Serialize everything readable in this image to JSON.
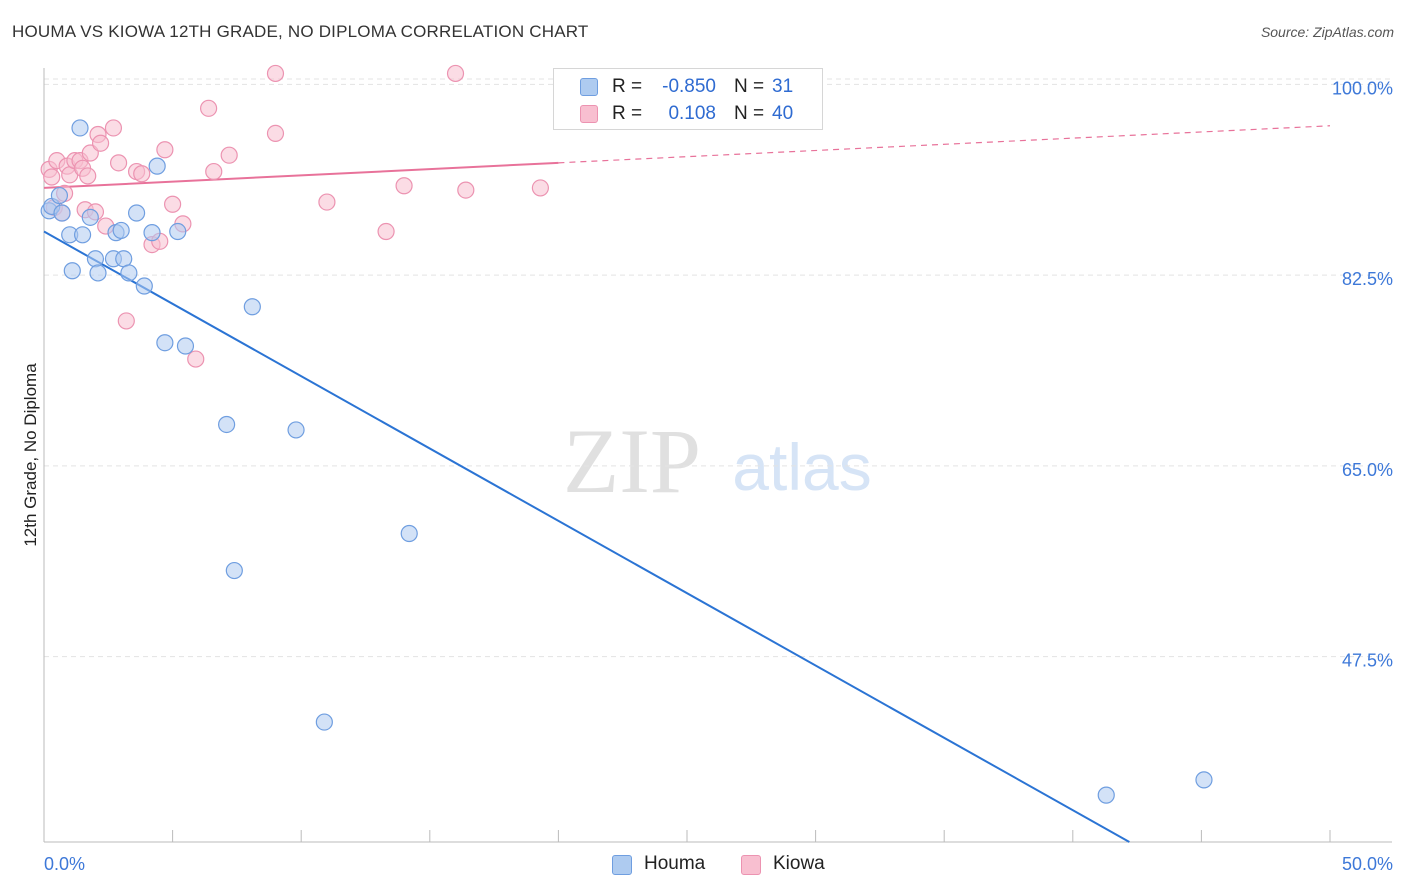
{
  "title": "HOUMA VS KIOWA 12TH GRADE, NO DIPLOMA CORRELATION CHART",
  "source": "Source: ZipAtlas.com",
  "watermark": {
    "zip": "ZIP",
    "atlas": "atlas"
  },
  "legend": {
    "r_label": "R =",
    "n_label": "N =",
    "rows": [
      {
        "series": "Houma",
        "r": "-0.850",
        "n": "31"
      },
      {
        "series": "Kiowa",
        "r": "0.108",
        "n": "40"
      }
    ]
  },
  "colors": {
    "houma_fill": "#aecbf0",
    "houma_stroke": "#6f9ee0",
    "houma_line": "#2b74d4",
    "kiowa_fill": "#f8bfd0",
    "kiowa_stroke": "#ec93b1",
    "kiowa_line": "#e8729a",
    "tick_label": "#3d78d8",
    "grid": "#e3e3e3"
  },
  "chart_data": {
    "type": "scatter",
    "title": "HOUMA VS KIOWA 12TH GRADE, NO DIPLOMA CORRELATION CHART",
    "xlabel": "",
    "ylabel": "12th Grade, No Diploma",
    "xlim": [
      0,
      50
    ],
    "ylim": [
      30.5,
      101.5
    ],
    "x_tick_labels": [
      "0.0%",
      "50.0%"
    ],
    "y_ticks": [
      {
        "value": 100.0,
        "label": "100.0%"
      },
      {
        "value": 82.5,
        "label": "82.5%"
      },
      {
        "value": 65.0,
        "label": "65.0%"
      },
      {
        "value": 47.5,
        "label": "47.5%"
      }
    ],
    "series": [
      {
        "name": "Houma",
        "points": [
          [
            0.2,
            88.4
          ],
          [
            0.3,
            88.8
          ],
          [
            0.6,
            89.8
          ],
          [
            0.7,
            88.2
          ],
          [
            1.0,
            86.2
          ],
          [
            1.1,
            82.9
          ],
          [
            1.4,
            96.0
          ],
          [
            1.5,
            86.2
          ],
          [
            1.8,
            87.8
          ],
          [
            2.0,
            84.0
          ],
          [
            2.1,
            82.7
          ],
          [
            2.7,
            84.0
          ],
          [
            2.8,
            86.4
          ],
          [
            3.0,
            86.6
          ],
          [
            3.1,
            84.0
          ],
          [
            3.3,
            82.7
          ],
          [
            3.6,
            88.2
          ],
          [
            3.9,
            81.5
          ],
          [
            4.2,
            86.4
          ],
          [
            4.4,
            92.5
          ],
          [
            4.7,
            76.3
          ],
          [
            5.2,
            86.5
          ],
          [
            5.5,
            76.0
          ],
          [
            7.1,
            68.8
          ],
          [
            7.4,
            55.4
          ],
          [
            8.1,
            79.6
          ],
          [
            9.8,
            68.3
          ],
          [
            10.9,
            41.5
          ],
          [
            14.2,
            58.8
          ],
          [
            41.3,
            34.8
          ],
          [
            45.1,
            36.2
          ]
        ],
        "trend": {
          "x": [
            0,
            42.2
          ],
          "y": [
            86.5,
            30.5
          ],
          "style": "solid"
        }
      },
      {
        "name": "Kiowa",
        "points": [
          [
            0.2,
            92.2
          ],
          [
            0.3,
            91.5
          ],
          [
            0.4,
            88.7
          ],
          [
            0.5,
            93.0
          ],
          [
            0.7,
            88.2
          ],
          [
            0.8,
            90.0
          ],
          [
            0.9,
            92.5
          ],
          [
            1.0,
            91.7
          ],
          [
            1.2,
            93.0
          ],
          [
            1.4,
            93.0
          ],
          [
            1.5,
            92.3
          ],
          [
            1.6,
            88.5
          ],
          [
            1.7,
            91.6
          ],
          [
            1.8,
            93.7
          ],
          [
            2.0,
            88.3
          ],
          [
            2.1,
            95.4
          ],
          [
            2.2,
            94.6
          ],
          [
            2.4,
            87.0
          ],
          [
            2.7,
            96.0
          ],
          [
            2.9,
            92.8
          ],
          [
            3.2,
            78.3
          ],
          [
            3.6,
            92.0
          ],
          [
            3.8,
            91.8
          ],
          [
            4.2,
            85.3
          ],
          [
            4.5,
            85.6
          ],
          [
            4.7,
            94.0
          ],
          [
            5.0,
            89.0
          ],
          [
            5.4,
            87.2
          ],
          [
            5.9,
            74.8
          ],
          [
            6.4,
            97.8
          ],
          [
            6.6,
            92.0
          ],
          [
            7.2,
            93.5
          ],
          [
            9.0,
            95.5
          ],
          [
            9.0,
            101.0
          ],
          [
            11.0,
            89.2
          ],
          [
            13.3,
            86.5
          ],
          [
            14.0,
            90.7
          ],
          [
            16.0,
            101.0
          ],
          [
            16.4,
            90.3
          ],
          [
            19.3,
            90.5
          ]
        ],
        "trend": {
          "x": [
            0,
            20.0,
            50.0
          ],
          "y": [
            90.5,
            92.8,
            96.2
          ],
          "style": "solid-then-dashed"
        }
      }
    ],
    "legend_position": "top-center",
    "grid": true
  }
}
